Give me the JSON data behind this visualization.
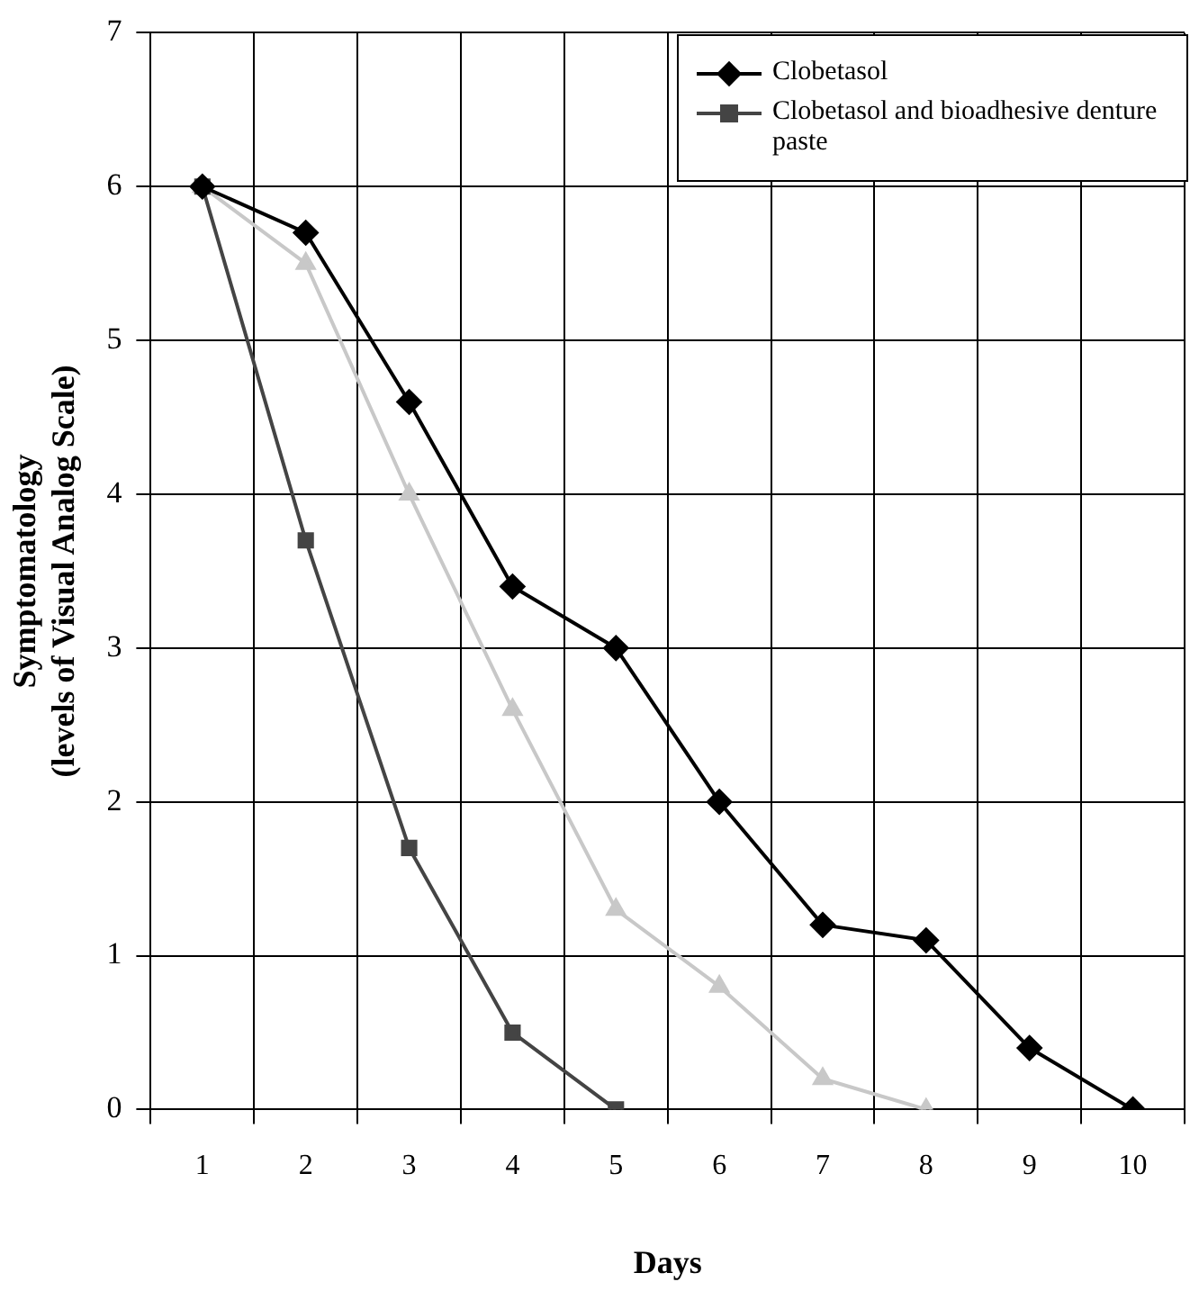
{
  "chart_data": {
    "type": "line",
    "xlabel": "Days",
    "ylabel": "Symptomatology\n(levels of Visual Analog Scale)",
    "categories": [
      "1",
      "2",
      "3",
      "4",
      "5",
      "6",
      "7",
      "8",
      "9",
      "10"
    ],
    "series": [
      {
        "name": "Clobetasol",
        "color": "#000000",
        "marker": "diamond",
        "values": [
          6,
          5.7,
          4.6,
          3.4,
          3.0,
          2.0,
          1.2,
          1.1,
          0.4,
          0
        ]
      },
      {
        "name": "Clobetasol and bioadhesive denture paste",
        "color": "#444444",
        "marker": "square",
        "values": [
          6,
          3.7,
          1.7,
          0.5,
          0,
          null,
          null,
          null,
          null,
          null
        ]
      },
      {
        "color": "#c8c8c8",
        "marker": "triangle",
        "values": [
          6,
          5.5,
          4.0,
          2.6,
          1.3,
          0.8,
          0.2,
          0,
          null,
          null
        ]
      }
    ],
    "ylim": [
      0,
      7
    ],
    "yticks": [
      0,
      1,
      2,
      3,
      4,
      5,
      6,
      7
    ],
    "grid": true,
    "legend": "top right",
    "line_style": "solid"
  }
}
